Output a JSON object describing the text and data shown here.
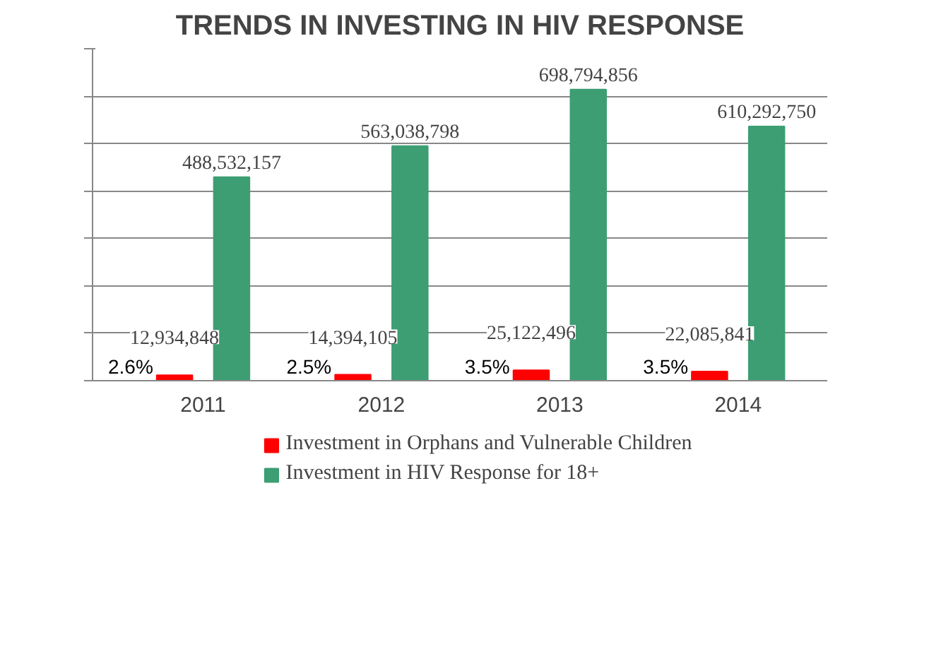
{
  "chart_data": {
    "type": "bar",
    "title": "TRENDS IN INVESTING IN HIV RESPONSE",
    "categories": [
      "2011",
      "2012",
      "2013",
      "2014"
    ],
    "series": [
      {
        "name": "Investment in Orphans and Vulnerable Children",
        "color": "#ff0000",
        "values": [
          12934848,
          14394105,
          25122496,
          22085841
        ],
        "value_labels": [
          "12,934,848",
          "14,394,105",
          "25,122,496",
          "22,085,841"
        ]
      },
      {
        "name": "Investment in HIV Response for 18+",
        "color": "#3d9e73",
        "values": [
          488532157,
          563038798,
          698794856,
          610292750
        ],
        "value_labels": [
          "488,532,157",
          "563,038,798",
          "698,794,856",
          "610,292,750"
        ]
      }
    ],
    "grid": "y",
    "legend": "bottom",
    "annotations": [
      "2.6%",
      "2.5%",
      "3.5%",
      "3.5%"
    ]
  }
}
